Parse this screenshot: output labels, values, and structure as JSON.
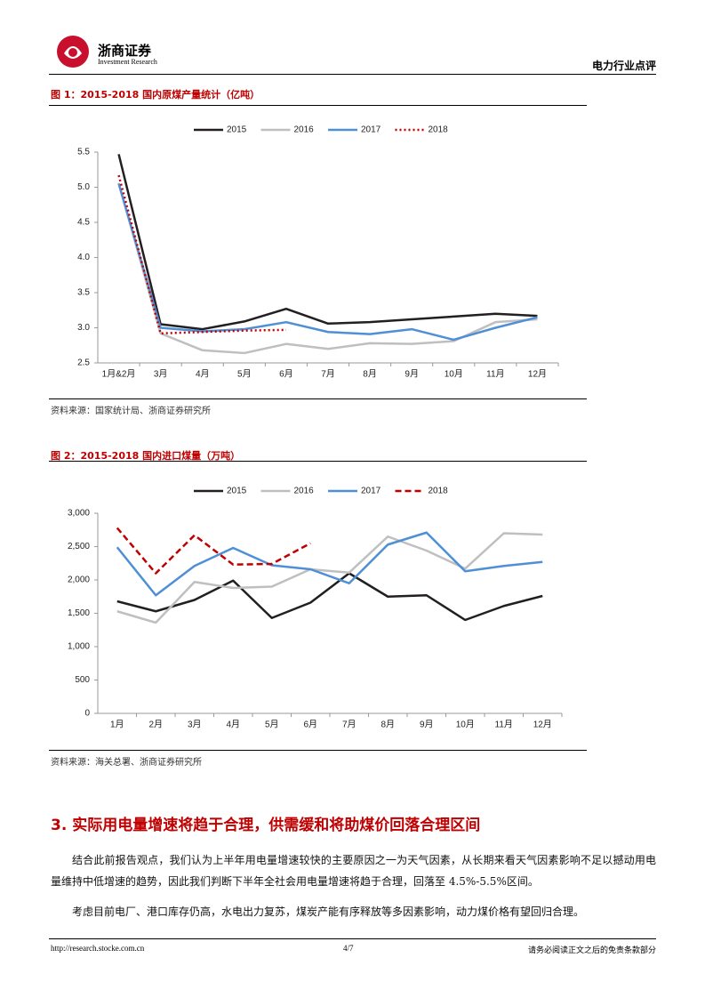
{
  "header": {
    "logo_cn": "浙商证券",
    "logo_en": "Investment Research",
    "section": "电力行业点评"
  },
  "chart_data": [
    {
      "type": "line",
      "title": "图 1：2015-2018 国内原煤产量统计（亿吨）",
      "categories": [
        "1月&2月",
        "3月",
        "4月",
        "5月",
        "6月",
        "7月",
        "8月",
        "9月",
        "10月",
        "11月",
        "12月"
      ],
      "series": [
        {
          "name": "2015",
          "color": "#231f20",
          "values": [
            5.47,
            3.05,
            2.98,
            3.09,
            3.27,
            3.06,
            3.08,
            3.12,
            3.16,
            3.2,
            3.17
          ]
        },
        {
          "name": "2016",
          "color": "#bfbfbf",
          "values": [
            5.06,
            2.92,
            2.68,
            2.64,
            2.77,
            2.7,
            2.78,
            2.77,
            2.81,
            3.08,
            3.12
          ]
        },
        {
          "name": "2017",
          "color": "#4f8fd6",
          "values": [
            5.05,
            3.0,
            2.95,
            2.98,
            3.08,
            2.94,
            2.91,
            2.98,
            2.83,
            3.0,
            3.15
          ]
        },
        {
          "name": "2018",
          "color": "#c00000",
          "dash": "dotted",
          "values": [
            5.17,
            2.92,
            2.94,
            2.96,
            2.97,
            null,
            null,
            null,
            null,
            null,
            null
          ]
        }
      ],
      "ylim": [
        2.5,
        5.5
      ],
      "yticks": [
        2.5,
        {
          "value": 3,
          "label": "3.0"
        },
        3.5,
        {
          "value": 4,
          "label": "4.0"
        },
        4.5,
        {
          "value": 5,
          "label": "5.0"
        },
        5.5
      ],
      "grid": false,
      "legend": "top",
      "source": "资料来源：国家统计局、浙商证券研究所"
    },
    {
      "type": "line",
      "title": "图 2：2015-2018 国内进口煤量（万吨）",
      "categories": [
        "1月",
        "2月",
        "3月",
        "4月",
        "5月",
        "6月",
        "7月",
        "8月",
        "9月",
        "10月",
        "11月",
        "12月"
      ],
      "series": [
        {
          "name": "2015",
          "color": "#231f20",
          "values": [
            1680,
            1530,
            1700,
            1990,
            1430,
            1660,
            2100,
            1750,
            1770,
            1400,
            1610,
            1760
          ]
        },
        {
          "name": "2016",
          "color": "#bfbfbf",
          "values": [
            1530,
            1360,
            1970,
            1880,
            1900,
            2160,
            2110,
            2650,
            2440,
            2170,
            2700,
            2680
          ]
        },
        {
          "name": "2017",
          "color": "#4f8fd6",
          "values": [
            2490,
            1770,
            2210,
            2480,
            2220,
            2160,
            1950,
            2530,
            2710,
            2130,
            2210,
            2270
          ]
        },
        {
          "name": "2018",
          "color": "#c00000",
          "dash": "dashed",
          "values": [
            2780,
            2100,
            2670,
            2230,
            2240,
            2550,
            null,
            null,
            null,
            null,
            null,
            null
          ]
        }
      ],
      "ylim": [
        0,
        3000
      ],
      "yticks": [
        0,
        500,
        {
          "value": 1000,
          "label": "1,000"
        },
        {
          "value": 1500,
          "label": "1,500"
        },
        {
          "value": 2000,
          "label": "2,000"
        },
        {
          "value": 2500,
          "label": "2,500"
        },
        {
          "value": 3000,
          "label": "3,000"
        }
      ],
      "grid": false,
      "legend": "top",
      "source": "资料来源：海关总署、浙商证券研究所"
    }
  ],
  "section": {
    "heading": "3. 实际用电量增速将趋于合理，供需缓和将助煤价回落合理区间",
    "paragraphs": [
      "结合此前报告观点，我们认为上半年用电量增速较快的主要原因之一为天气因素，从长期来看天气因素影响不足以撼动用电量维持中低增速的趋势，因此我们判断下半年全社会用电量增速将趋于合理，回落至 4.5%-5.5%区间。",
      "考虑目前电厂、港口库存仍高，水电出力复苏，煤炭产能有序释放等多因素影响，动力煤价格有望回归合理。"
    ]
  },
  "footer": {
    "url": "http://research.stocke.com.cn",
    "page": "4/7",
    "disclaimer": "请务必阅读正文之后的免责条款部分"
  }
}
